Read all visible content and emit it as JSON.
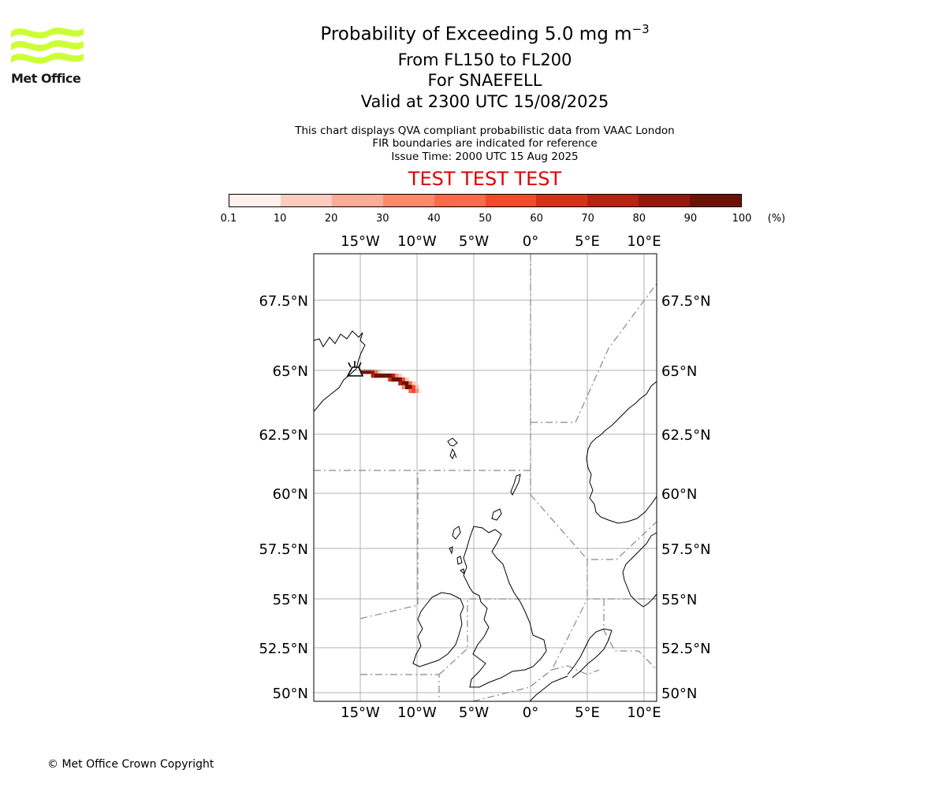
{
  "logo": {
    "text": "Met Office",
    "color": "#ccff33"
  },
  "header": {
    "title": "Probability of Exceeding 5.0 mg m",
    "title_superscript": "−3",
    "level_range": "From FL150 to FL200",
    "volcano": "For SNAEFELL",
    "valid_time": "Valid at 2300 UTC 15/08/2025"
  },
  "notes": {
    "line1": "This chart displays QVA compliant probabilistic data from VAAC London",
    "line2": "FIR boundaries are indicated for reference",
    "issue_time": "Issue Time: 2000 UTC 15 Aug 2025"
  },
  "test_banner": "TEST TEST TEST",
  "colorbar": {
    "unit": "(%)",
    "ticks": [
      "0.1",
      "10",
      "20",
      "30",
      "40",
      "50",
      "60",
      "70",
      "80",
      "90",
      "100"
    ],
    "colors": [
      "#fff0eb",
      "#fdccbe",
      "#fcab96",
      "#fc8a6a",
      "#fb6a4a",
      "#f34a2a",
      "#d63218",
      "#b82210",
      "#94180b",
      "#6a1206"
    ]
  },
  "map": {
    "projection_extent": {
      "lon": [
        -19,
        11
      ],
      "lat": [
        49.8,
        69.5
      ]
    },
    "lon_ticks": [
      "15°W",
      "10°W",
      "5°W",
      "0°",
      "5°E",
      "10°E"
    ],
    "lon_values": [
      -15,
      -10,
      -5,
      0,
      5,
      10
    ],
    "lat_ticks": [
      "67.5°N",
      "65°N",
      "62.5°N",
      "60°N",
      "57.5°N",
      "55°N",
      "52.5°N",
      "50°N"
    ],
    "lat_values": [
      67.5,
      65,
      62.5,
      60,
      57.5,
      55,
      52.5,
      50
    ],
    "volcano_marker": "volcano-triangle",
    "plume_cells": [
      {
        "lon": -14.8,
        "lat": 64.95,
        "p": 100
      },
      {
        "lon": -14.5,
        "lat": 64.95,
        "p": 100
      },
      {
        "lon": -14.2,
        "lat": 64.95,
        "p": 95
      },
      {
        "lon": -13.9,
        "lat": 64.95,
        "p": 85
      },
      {
        "lon": -13.6,
        "lat": 64.95,
        "p": 40
      },
      {
        "lon": -13.3,
        "lat": 64.95,
        "p": 15
      },
      {
        "lon": -13.0,
        "lat": 64.95,
        "p": 5
      },
      {
        "lon": -13.9,
        "lat": 64.8,
        "p": 70
      },
      {
        "lon": -13.6,
        "lat": 64.8,
        "p": 100
      },
      {
        "lon": -13.3,
        "lat": 64.8,
        "p": 100
      },
      {
        "lon": -13.0,
        "lat": 64.8,
        "p": 100
      },
      {
        "lon": -12.7,
        "lat": 64.8,
        "p": 100
      },
      {
        "lon": -12.4,
        "lat": 64.8,
        "p": 100
      },
      {
        "lon": -12.1,
        "lat": 64.8,
        "p": 75
      },
      {
        "lon": -11.8,
        "lat": 64.8,
        "p": 35
      },
      {
        "lon": -11.5,
        "lat": 64.8,
        "p": 10
      },
      {
        "lon": -12.4,
        "lat": 64.65,
        "p": 60
      },
      {
        "lon": -12.1,
        "lat": 64.65,
        "p": 100
      },
      {
        "lon": -11.8,
        "lat": 64.65,
        "p": 100
      },
      {
        "lon": -11.5,
        "lat": 64.65,
        "p": 100
      },
      {
        "lon": -11.2,
        "lat": 64.65,
        "p": 55
      },
      {
        "lon": -10.9,
        "lat": 64.65,
        "p": 15
      },
      {
        "lon": -11.5,
        "lat": 64.5,
        "p": 70
      },
      {
        "lon": -11.2,
        "lat": 64.5,
        "p": 100
      },
      {
        "lon": -10.9,
        "lat": 64.5,
        "p": 95
      },
      {
        "lon": -10.6,
        "lat": 64.5,
        "p": 40
      },
      {
        "lon": -10.3,
        "lat": 64.5,
        "p": 10
      },
      {
        "lon": -11.2,
        "lat": 64.35,
        "p": 35
      },
      {
        "lon": -10.9,
        "lat": 64.35,
        "p": 90
      },
      {
        "lon": -10.6,
        "lat": 64.35,
        "p": 100
      },
      {
        "lon": -10.3,
        "lat": 64.35,
        "p": 55
      },
      {
        "lon": -10.0,
        "lat": 64.35,
        "p": 15
      },
      {
        "lon": -10.6,
        "lat": 64.2,
        "p": 40
      },
      {
        "lon": -10.3,
        "lat": 64.2,
        "p": 50
      },
      {
        "lon": -10.0,
        "lat": 64.2,
        "p": 30
      },
      {
        "lon": -9.7,
        "lat": 64.2,
        "p": 8
      }
    ]
  },
  "footer": {
    "copyright": "© Met Office Crown Copyright"
  }
}
